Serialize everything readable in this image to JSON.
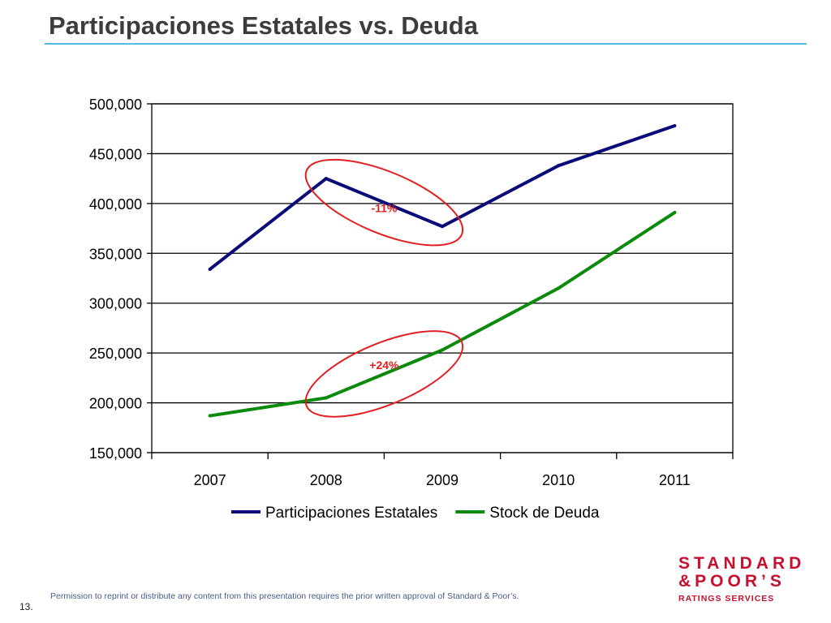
{
  "slide": {
    "title": "Participaciones Estatales vs. Deuda",
    "page_number": "13.",
    "footer_note": "Permission to reprint or distribute any content from this presentation requires the prior written approval of Standard & Poor’s.",
    "logo": {
      "line1": "STANDARD",
      "line2": "&POOR’S",
      "line3": "RATINGS SERVICES"
    }
  },
  "colors": {
    "accent_rule": "#5bb7e6",
    "brand_red": "#c8102e",
    "annotation_red": "#e02020"
  },
  "chart_data": {
    "type": "line",
    "categories": [
      "2007",
      "2008",
      "2009",
      "2010",
      "2011"
    ],
    "series": [
      {
        "name": "Participaciones Estatales",
        "color": "#0a0a78",
        "values": [
          334000,
          425000,
          377000,
          438000,
          478000
        ]
      },
      {
        "name": "Stock de Deuda",
        "color": "#0c8a0c",
        "values": [
          187000,
          205000,
          253000,
          315000,
          391000
        ]
      }
    ],
    "ylim": [
      150000,
      500000
    ],
    "yticks": [
      150000,
      200000,
      250000,
      300000,
      350000,
      400000,
      450000,
      500000
    ],
    "ytick_labels": [
      "150,000",
      "200,000",
      "250,000",
      "300,000",
      "350,000",
      "400,000",
      "450,000",
      "500,000"
    ],
    "grid": true,
    "legend": "bottom",
    "annotations": [
      {
        "label": "-11%",
        "series": "Participaciones Estatales",
        "from": "2008",
        "to": "2009"
      },
      {
        "label": "+24%",
        "series": "Stock de Deuda",
        "from": "2008",
        "to": "2009"
      }
    ]
  }
}
